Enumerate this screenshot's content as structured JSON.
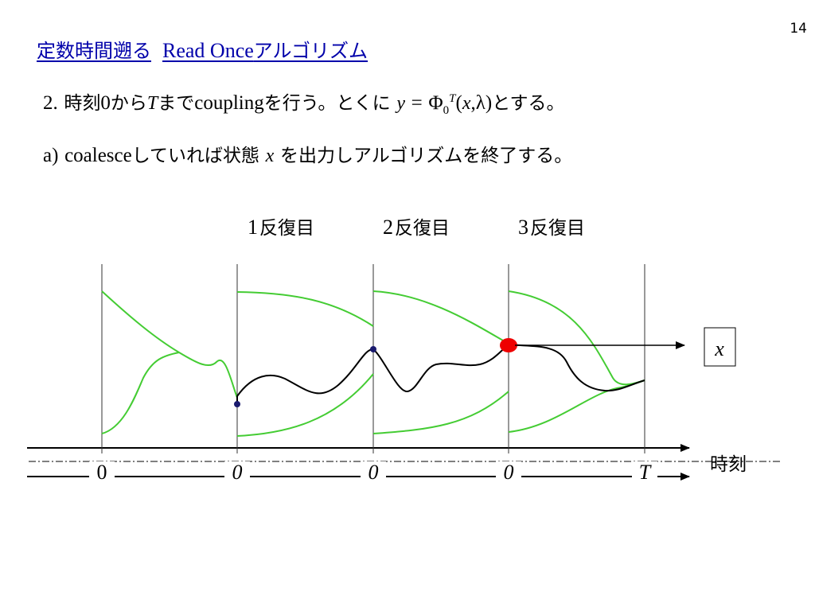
{
  "page_number": "14",
  "title": {
    "ja": "定数時間遡る",
    "en": "Read Once",
    "suffix": "アルゴリズム"
  },
  "step_line": {
    "num": "2.",
    "t1": "時刻",
    "zero": "0",
    "t2": "から",
    "T": "T",
    "t3": "まで",
    "coupling": "coupling",
    "t4": "を行う。とくに",
    "y": "y",
    "eq": "=",
    "phi": "Φ",
    "sub0": "0",
    "supT": "T",
    "open": "(",
    "x": "x",
    "comma": ",",
    "lambda": "λ",
    "close": ")",
    "t5": "とする。"
  },
  "sub_line": {
    "label": "a)",
    "coalesce": "coalesce",
    "t1": "していれば状態",
    "x": "x",
    "t2": "を出力しアルゴリズムを終了する。"
  },
  "iterations": [
    {
      "num": "1",
      "label": "反復目"
    },
    {
      "num": "2",
      "label": "反復目"
    },
    {
      "num": "3",
      "label": "反復目"
    }
  ],
  "axis": {
    "tick_labels": [
      "0",
      "0",
      "0",
      "0",
      "T"
    ],
    "time_label": "時刻"
  },
  "output_box": "x",
  "colors": {
    "title": "#0000aa",
    "green_path": "#44cc33",
    "black_path": "#000000",
    "dot": "#1a1a6e",
    "coalesce_dot": "#ee0000"
  }
}
